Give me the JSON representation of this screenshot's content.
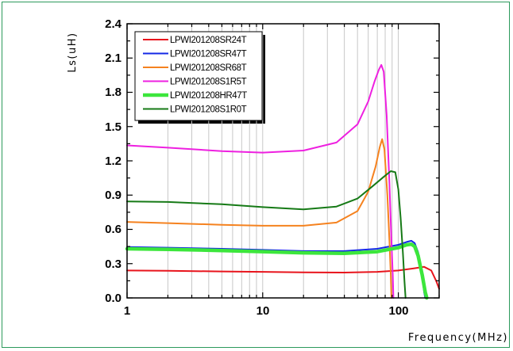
{
  "chart_data": {
    "type": "line",
    "xlabel": "Frequency(MHz)",
    "ylabel": "Ls(uH)",
    "xscale": "log",
    "xlim": [
      1,
      200
    ],
    "ylim": [
      0,
      2.4
    ],
    "grid": "vertical log minor",
    "legend_position": "top-left",
    "x_tick_labels": [
      "1",
      "10",
      "100"
    ],
    "y_tick_labels": [
      "0.0",
      "0.3",
      "0.6",
      "0.9",
      "1.2",
      "1.5",
      "1.8",
      "2.1",
      "2.4"
    ],
    "series": [
      {
        "name": "LPWI201208SR24T",
        "color": "#e8141c",
        "points": [
          [
            1,
            0.24
          ],
          [
            2,
            0.237
          ],
          [
            5,
            0.232
          ],
          [
            10,
            0.228
          ],
          [
            20,
            0.224
          ],
          [
            40,
            0.222
          ],
          [
            70,
            0.228
          ],
          [
            100,
            0.24
          ],
          [
            130,
            0.258
          ],
          [
            155,
            0.272
          ],
          [
            175,
            0.24
          ],
          [
            190,
            0.15
          ],
          [
            200,
            0.08
          ]
        ]
      },
      {
        "name": "LPWI201208SR47T",
        "color": "#1428e6",
        "points": [
          [
            1,
            0.445
          ],
          [
            2,
            0.44
          ],
          [
            5,
            0.43
          ],
          [
            10,
            0.42
          ],
          [
            20,
            0.41
          ],
          [
            40,
            0.41
          ],
          [
            70,
            0.43
          ],
          [
            100,
            0.465
          ],
          [
            115,
            0.49
          ],
          [
            125,
            0.5
          ],
          [
            132,
            0.48
          ],
          [
            140,
            0.4
          ],
          [
            148,
            0.25
          ],
          [
            155,
            0.05
          ],
          [
            158,
            0.0
          ]
        ]
      },
      {
        "name": "LPWI201208SR68T",
        "color": "#f5821f",
        "points": [
          [
            1,
            0.665
          ],
          [
            2,
            0.655
          ],
          [
            5,
            0.64
          ],
          [
            10,
            0.632
          ],
          [
            20,
            0.632
          ],
          [
            35,
            0.66
          ],
          [
            50,
            0.76
          ],
          [
            60,
            0.93
          ],
          [
            68,
            1.15
          ],
          [
            73,
            1.32
          ],
          [
            76,
            1.39
          ],
          [
            79,
            1.3
          ],
          [
            83,
            0.9
          ],
          [
            86,
            0.5
          ],
          [
            88,
            0.2
          ],
          [
            89,
            0.0
          ]
        ]
      },
      {
        "name": "LPWI201208S1R5T",
        "color": "#ee20e0",
        "points": [
          [
            1,
            1.335
          ],
          [
            2,
            1.315
          ],
          [
            5,
            1.285
          ],
          [
            10,
            1.272
          ],
          [
            20,
            1.29
          ],
          [
            35,
            1.36
          ],
          [
            50,
            1.52
          ],
          [
            60,
            1.72
          ],
          [
            67,
            1.9
          ],
          [
            72,
            2.0
          ],
          [
            75,
            2.04
          ],
          [
            78,
            1.98
          ],
          [
            82,
            1.6
          ],
          [
            86,
            1.0
          ],
          [
            89,
            0.5
          ],
          [
            91,
            0.2
          ],
          [
            92,
            0.0
          ]
        ]
      },
      {
        "name": "LPWI201208HR47T",
        "color": "#3ce63c",
        "points": [
          [
            1,
            0.43
          ],
          [
            2,
            0.425
          ],
          [
            5,
            0.415
          ],
          [
            10,
            0.405
          ],
          [
            20,
            0.395
          ],
          [
            40,
            0.39
          ],
          [
            70,
            0.405
          ],
          [
            100,
            0.44
          ],
          [
            115,
            0.465
          ],
          [
            125,
            0.47
          ],
          [
            132,
            0.45
          ],
          [
            140,
            0.37
          ],
          [
            150,
            0.2
          ],
          [
            158,
            0.05
          ],
          [
            162,
            0.0
          ]
        ]
      },
      {
        "name": "LPWI201208S1R0T",
        "color": "#167a16",
        "points": [
          [
            1,
            0.845
          ],
          [
            2,
            0.84
          ],
          [
            5,
            0.82
          ],
          [
            10,
            0.795
          ],
          [
            20,
            0.775
          ],
          [
            35,
            0.8
          ],
          [
            50,
            0.87
          ],
          [
            65,
            0.98
          ],
          [
            78,
            1.06
          ],
          [
            88,
            1.11
          ],
          [
            95,
            1.1
          ],
          [
            100,
            0.95
          ],
          [
            104,
            0.7
          ],
          [
            108,
            0.4
          ],
          [
            111,
            0.15
          ],
          [
            113,
            0.0
          ]
        ]
      }
    ]
  }
}
